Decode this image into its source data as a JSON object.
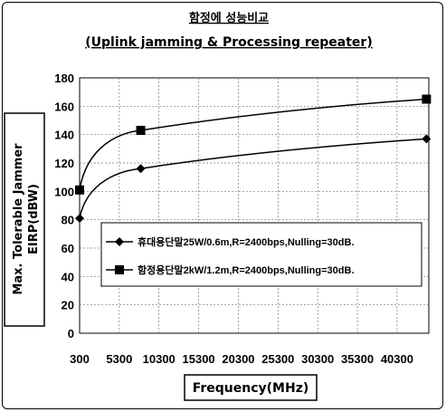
{
  "chart_data": {
    "type": "line",
    "title": "함정에 성능비교",
    "subtitle": "(Uplink jamming & Processing repeater)",
    "xlabel": "Frequency(MHz)",
    "ylabel_line1": "Max. Tolerable Jammer",
    "ylabel_line2": "EIRP(dBW)",
    "x_ticks": [
      "300",
      "5300",
      "10300",
      "15300",
      "20300",
      "25300",
      "30300",
      "35300",
      "40300"
    ],
    "x_tick_values": [
      300,
      5300,
      10300,
      15300,
      20300,
      25300,
      30300,
      35300,
      40300
    ],
    "xlim": [
      300,
      44300
    ],
    "ylim": [
      0,
      180
    ],
    "y_ticks": [
      0,
      20,
      40,
      60,
      80,
      100,
      120,
      140,
      160,
      180
    ],
    "grid": "dotted",
    "legend_position": "right-middle",
    "series": [
      {
        "name": "휴대용단말25W/0.6m,R=2400bps,Nulling=30dB.",
        "marker": "diamond",
        "color": "#000000",
        "x": [
          300,
          8000,
          44000
        ],
        "y": [
          81,
          116,
          137
        ]
      },
      {
        "name": "함정용단말2kW/1.2m,R=2400bps,Nulling=30dB.",
        "marker": "square",
        "color": "#000000",
        "x": [
          300,
          8000,
          44000
        ],
        "y": [
          101,
          143,
          165
        ]
      }
    ]
  }
}
